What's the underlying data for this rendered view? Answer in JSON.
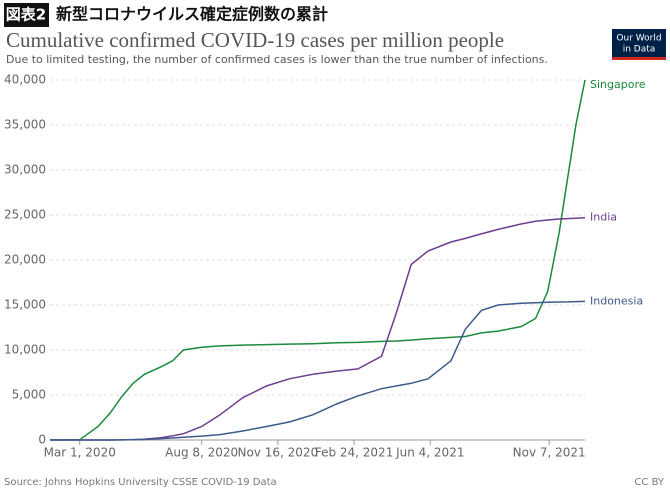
{
  "header": {
    "figure_label": "図表2",
    "title": "新型コロナウイルス確定症例数の累計"
  },
  "logo": [
    "Our World",
    "in Data"
  ],
  "chart_data": {
    "type": "line",
    "title": "Cumulative confirmed COVID-19 cases per million people",
    "subtitle": "Due to limited testing, the number of confirmed cases is lower than the true number of infections.",
    "x": [
      "2020-01-22",
      "2020-03-01",
      "2020-03-25",
      "2020-04-10",
      "2020-04-25",
      "2020-05-10",
      "2020-05-25",
      "2020-06-15",
      "2020-07-01",
      "2020-07-15",
      "2020-08-08",
      "2020-09-01",
      "2020-10-01",
      "2020-11-01",
      "2020-12-01",
      "2021-01-01",
      "2021-02-01",
      "2021-03-01",
      "2021-04-01",
      "2021-04-20",
      "2021-05-10",
      "2021-06-01",
      "2021-07-01",
      "2021-07-20",
      "2021-08-10",
      "2021-09-01",
      "2021-10-01",
      "2021-10-20",
      "2021-11-05",
      "2021-11-20",
      "2021-12-01",
      "2021-12-12",
      "2021-12-24"
    ],
    "series": [
      {
        "name": "Singapore",
        "color": "#1a8a3c",
        "values": [
          0,
          20,
          1500,
          3000,
          4800,
          6300,
          7300,
          8100,
          8800,
          10000,
          10300,
          10450,
          10550,
          10600,
          10650,
          10700,
          10800,
          10850,
          10950,
          11000,
          11100,
          11250,
          11400,
          11500,
          11900,
          12100,
          12600,
          13500,
          16500,
          23000,
          29000,
          35000,
          40000
        ]
      },
      {
        "name": "India",
        "color": "#6d3e91",
        "values": [
          0,
          0,
          0,
          5,
          15,
          40,
          100,
          250,
          450,
          700,
          1500,
          2800,
          4700,
          6000,
          6800,
          7300,
          7650,
          7900,
          9300,
          14000,
          19500,
          21000,
          22000,
          22400,
          22900,
          23400,
          24000,
          24300,
          24450,
          24550,
          24600,
          24650,
          24700
        ]
      },
      {
        "name": "Indonesia",
        "color": "#3c5b8a",
        "values": [
          0,
          0,
          0,
          5,
          15,
          30,
          60,
          150,
          220,
          300,
          430,
          600,
          1000,
          1500,
          2000,
          2800,
          4000,
          4900,
          5700,
          6000,
          6300,
          6800,
          8800,
          12300,
          14400,
          15000,
          15200,
          15250,
          15300,
          15330,
          15350,
          15380,
          15400
        ]
      }
    ],
    "xlim": [
      "2020-01-22",
      "2021-12-24"
    ],
    "xticks": [
      {
        "value": "2020-03-01",
        "label": "Mar 1, 2020"
      },
      {
        "value": "2020-08-08",
        "label": "Aug 8, 2020"
      },
      {
        "value": "2020-11-16",
        "label": "Nov 16, 2020"
      },
      {
        "value": "2021-02-24",
        "label": "Feb 24, 2021"
      },
      {
        "value": "2021-06-04",
        "label": "Jun 4, 2021"
      },
      {
        "value": "2021-11-07",
        "label": "Nov 7, 2021"
      }
    ],
    "ylim": [
      0,
      40000
    ],
    "yticks": [
      0,
      {
        "value": 5000,
        "label": "5,000"
      },
      {
        "value": 10000,
        "label": "10,000"
      },
      {
        "value": 15000,
        "label": "15,000"
      },
      {
        "value": 20000,
        "label": "20,000"
      },
      {
        "value": 25000,
        "label": "25,000"
      },
      {
        "value": 30000,
        "label": "30,000"
      },
      {
        "value": 35000,
        "label": "35,000"
      },
      {
        "value": 40000,
        "label": "40,000"
      }
    ],
    "grid": true
  },
  "footer": {
    "source": "Source: Johns Hopkins University CSSE COVID-19 Data",
    "license": "CC BY"
  }
}
